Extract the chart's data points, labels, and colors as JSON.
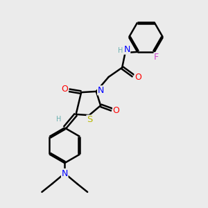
{
  "bg_color": "#ebebeb",
  "atom_colors": {
    "C": "#000000",
    "H": "#6ab0b0",
    "N": "#0000ff",
    "O": "#ff0000",
    "S": "#b8b800",
    "F": "#cc44cc"
  },
  "bond_color": "#000000",
  "figsize": [
    3.0,
    3.0
  ],
  "dpi": 100
}
